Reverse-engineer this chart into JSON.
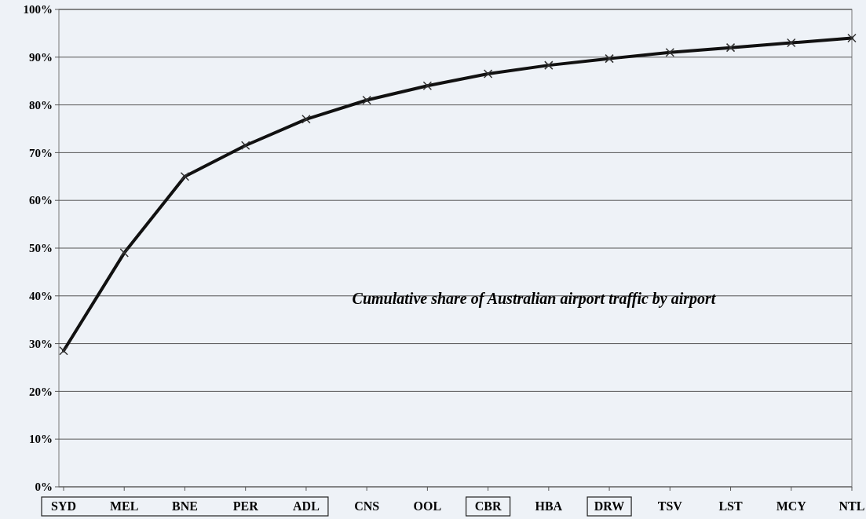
{
  "chart_data": {
    "type": "line",
    "categories": [
      "SYD",
      "MEL",
      "BNE",
      "PER",
      "ADL",
      "CNS",
      "OOL",
      "CBR",
      "HBA",
      "DRW",
      "TSV",
      "LST",
      "MCY",
      "NTL"
    ],
    "series": [
      {
        "color": "#111111",
        "values": [
          28.5,
          49,
          65,
          71.5,
          77,
          81,
          84,
          86.5,
          88.3,
          89.7,
          91,
          92,
          93,
          94
        ]
      }
    ],
    "ylim": [
      0,
      100
    ],
    "yticks": [
      {
        "value": 0,
        "label": "0%"
      },
      {
        "value": 10,
        "label": "10%"
      },
      {
        "value": 20,
        "label": "20%"
      },
      {
        "value": 30,
        "label": "30%"
      },
      {
        "value": 40,
        "label": "40%"
      },
      {
        "value": 50,
        "label": "50%"
      },
      {
        "value": 60,
        "label": "60%"
      },
      {
        "value": 70,
        "label": "70%"
      },
      {
        "value": 80,
        "label": "80%"
      },
      {
        "value": 90,
        "label": "90%"
      },
      {
        "value": 100,
        "label": "100%"
      }
    ],
    "annotations": [
      "Cumulative share of Australian airport traffic by airport"
    ],
    "grid": "y",
    "marker": "cross",
    "line_style": "solid"
  }
}
